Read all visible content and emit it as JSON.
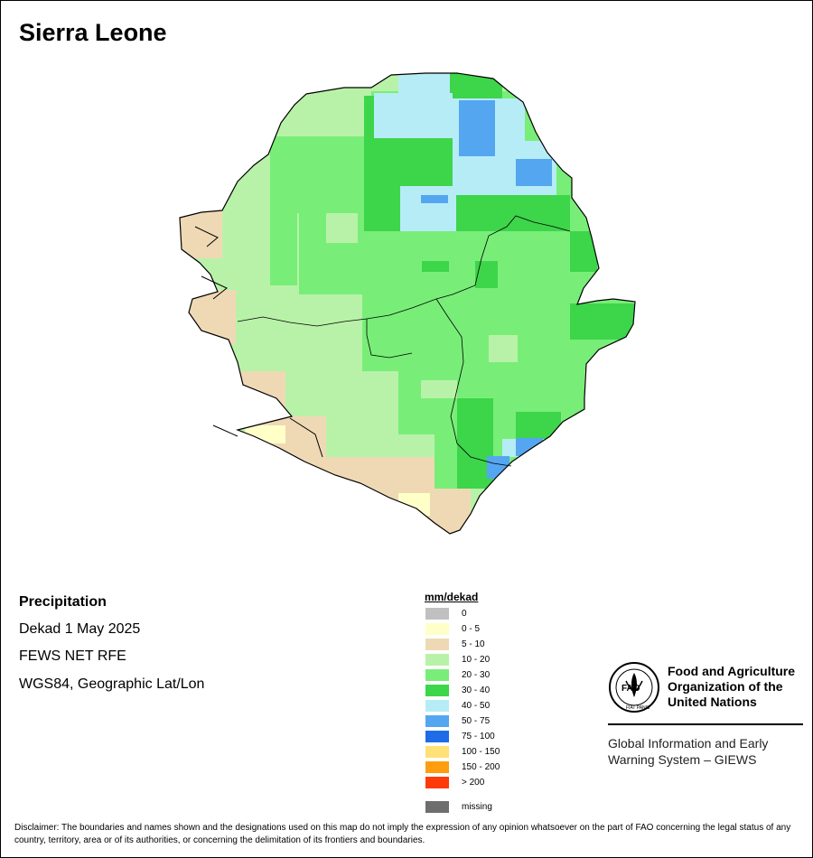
{
  "map_title": "Sierra Leone",
  "info": {
    "heading": "Precipitation",
    "period": "Dekad 1 May 2025",
    "source": "FEWS NET RFE",
    "projection": "WGS84, Geographic Lat/Lon"
  },
  "legend": {
    "title": "mm/dekad",
    "items": [
      {
        "label": "0",
        "color": "#c0c0c0"
      },
      {
        "label": "0 - 5",
        "color": "#ffffc8"
      },
      {
        "label": "5 - 10",
        "color": "#efd9b5"
      },
      {
        "label": "10 - 20",
        "color": "#b8f2a8"
      },
      {
        "label": "20 - 30",
        "color": "#78ee78"
      },
      {
        "label": "30 - 40",
        "color": "#3dd54a"
      },
      {
        "label": "40 - 50",
        "color": "#b6ecf6"
      },
      {
        "label": "50 - 75",
        "color": "#55a6f0"
      },
      {
        "label": "75 - 100",
        "color": "#1f6de6"
      },
      {
        "label": "100 - 150",
        "color": "#ffe178"
      },
      {
        "label": "150 - 200",
        "color": "#ff9d10"
      },
      {
        "label": "> 200",
        "color": "#ff3a0a"
      },
      {
        "label": "missing",
        "color": "#6e6e6e"
      }
    ]
  },
  "fao": {
    "name_lines": [
      "Food and Agriculture",
      "Organization of the",
      "United Nations"
    ],
    "emblem_text": "FAO",
    "motto": "FIAT PANIS",
    "system_lines": [
      "Global Information and Early",
      "Warning System – GIEWS"
    ]
  },
  "disclaimer": "Disclaimer: The boundaries and names shown and the designations used on this map do not imply the expression of any opinion whatsoever on the part of FAO concerning the legal status of any country, territory, area or of its authorities, or concerning the delimitation of its frontiers and boundaries."
}
